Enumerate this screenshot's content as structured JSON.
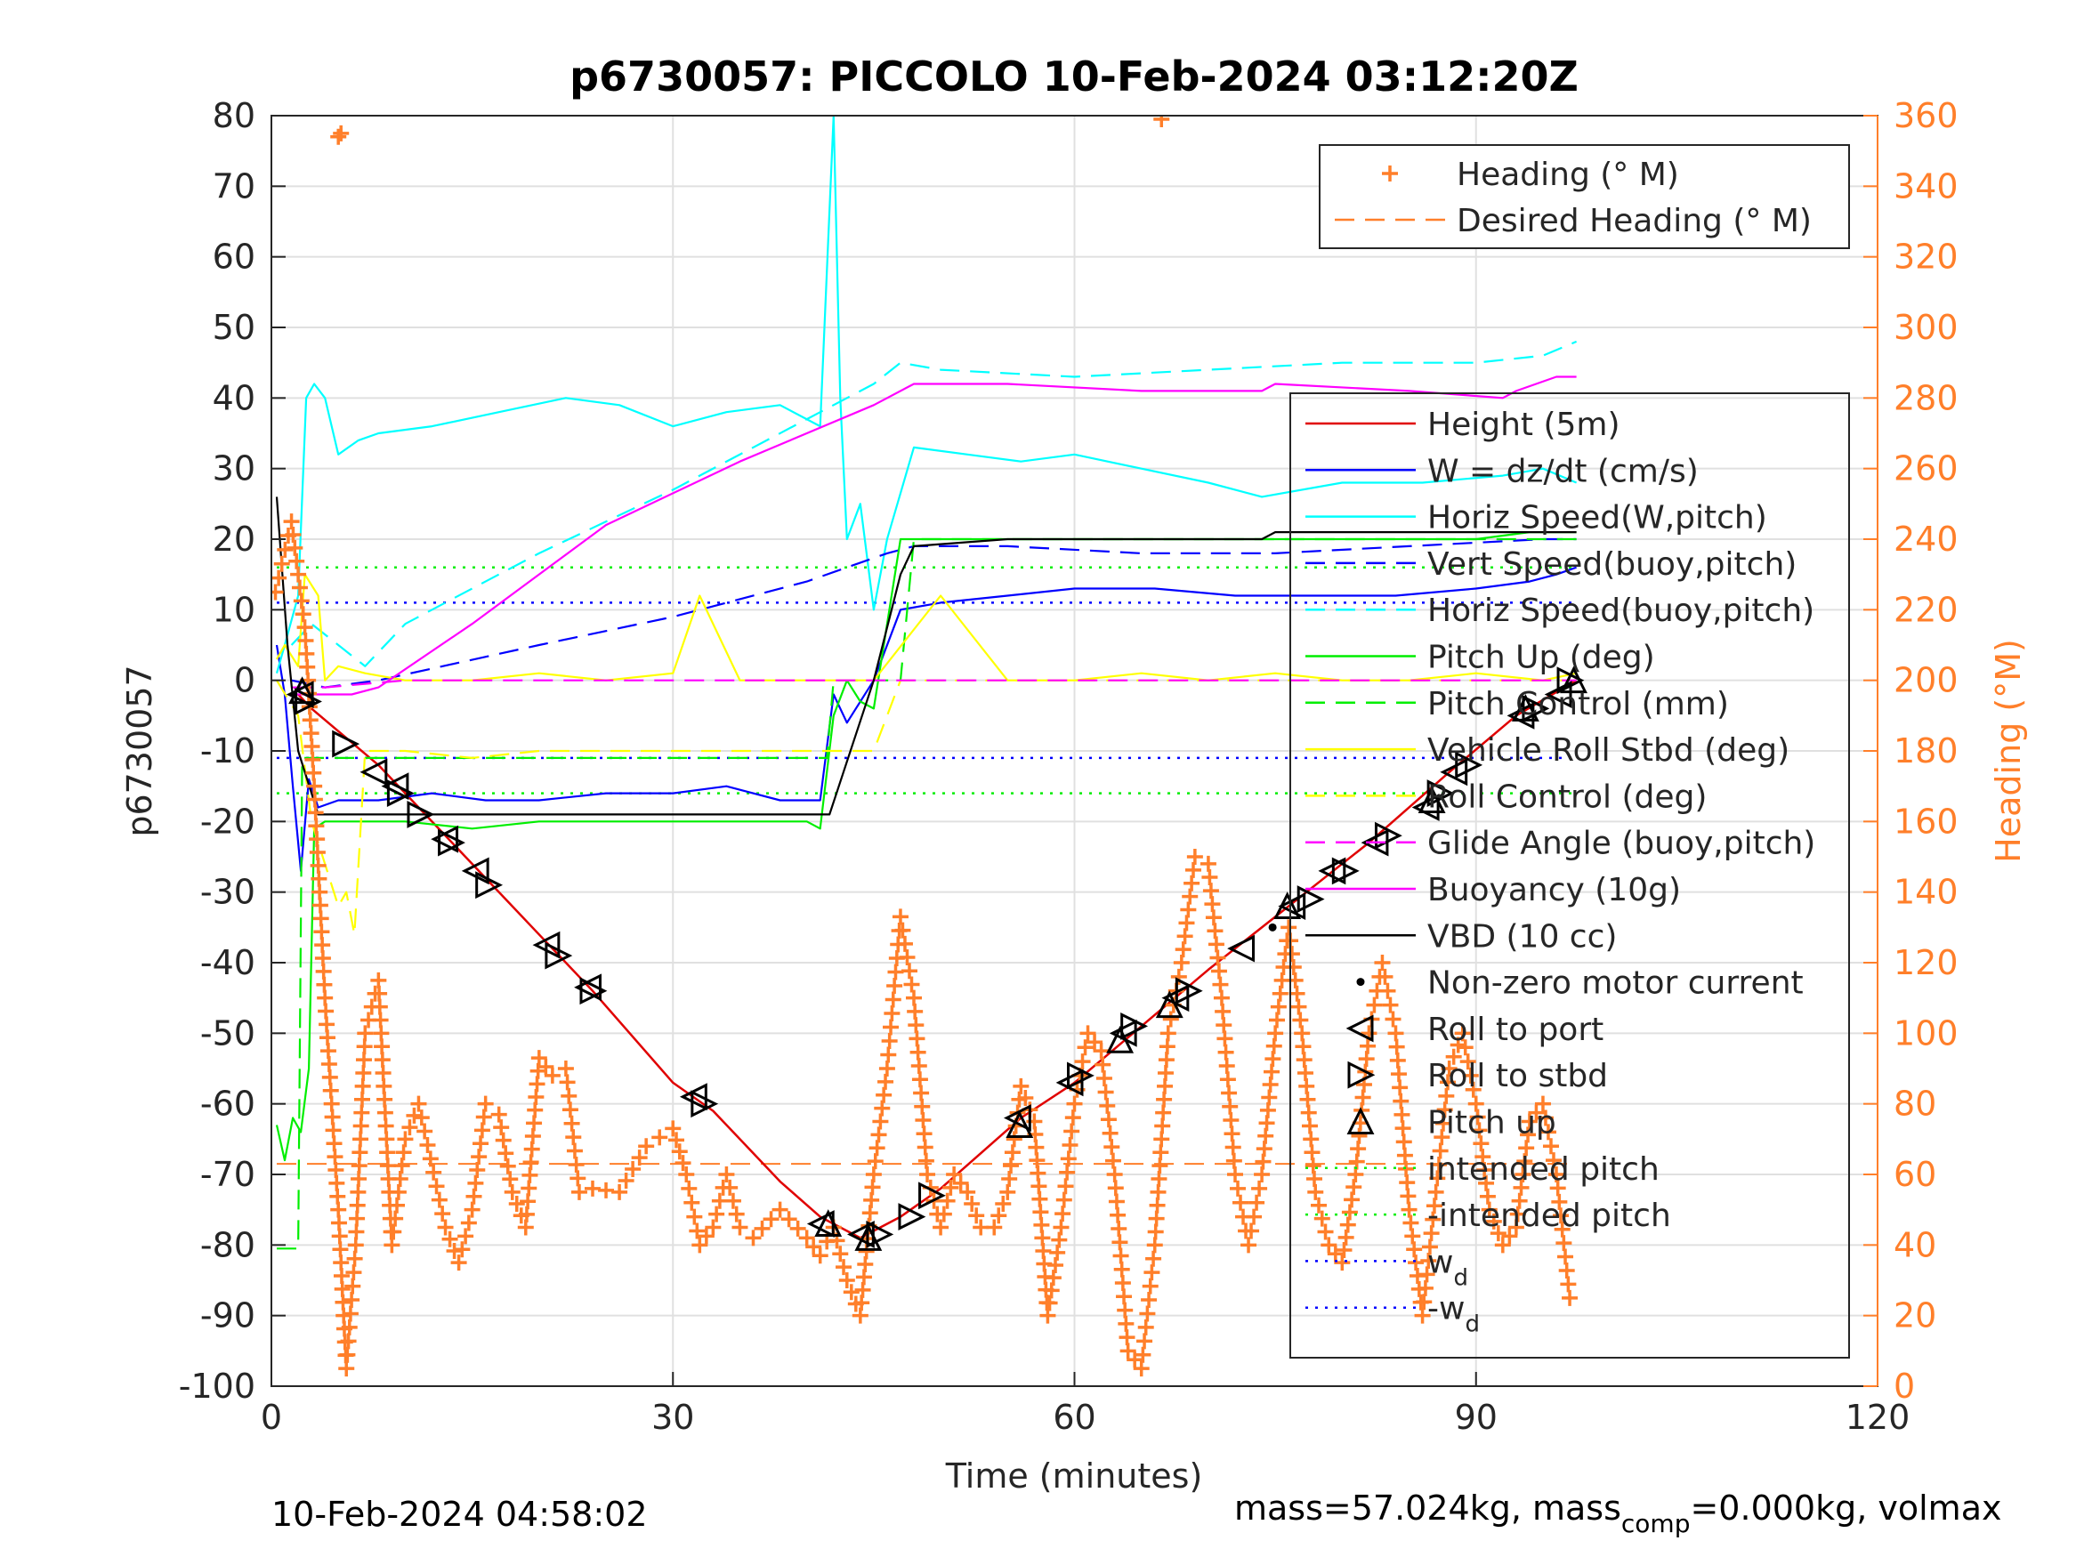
{
  "chart_data": {
    "type": "line",
    "title": "p6730057: PICCOLO 10-Feb-2024 03:12:20Z",
    "xlabel": "Time (minutes)",
    "ylabel_left": "p6730057",
    "ylabel_right": "Heading (°M)",
    "xlim": [
      0,
      120
    ],
    "ylim_left": [
      -100,
      80
    ],
    "ylim_right": [
      0,
      360
    ],
    "x_ticks": [
      "0",
      "30",
      "60",
      "90",
      "120"
    ],
    "y_ticks_left": [
      "80",
      "70",
      "60",
      "50",
      "40",
      "30",
      "20",
      "10",
      "0",
      "-10",
      "-20",
      "-30",
      "-40",
      "-50",
      "-60",
      "-70",
      "-80",
      "-90",
      "-100"
    ],
    "y_ticks_right": [
      "360",
      "340",
      "320",
      "300",
      "280",
      "260",
      "240",
      "220",
      "200",
      "180",
      "160",
      "140",
      "120",
      "100",
      "80",
      "60",
      "40",
      "20",
      "0"
    ],
    "grid": true,
    "footer_left": "10-Feb-2024 04:58:02",
    "footer_right": {
      "prefix": "mass=57.024kg, mass",
      "sub": "comp",
      "suffix": "=0.000kg, volmax"
    },
    "colors": {
      "heading": "#ff7f2a",
      "height": "#e00000",
      "w": "#0000ff",
      "horiz_speed": "#00ffff",
      "pitch": "#00ee00",
      "roll": "#ffff00",
      "glide": "#ff00ff",
      "vbd": "#000000"
    },
    "legend_heading": [
      {
        "label": "Heading (° M)",
        "style": "plus",
        "color": "#ff7f2a"
      },
      {
        "label": "Desired Heading (° M)",
        "style": "dash",
        "color": "#ff7f2a"
      }
    ],
    "legend_main": [
      {
        "label": "Height (5m)",
        "style": "solid",
        "color": "#e00000"
      },
      {
        "label": "W = dz/dt (cm/s)",
        "style": "solid",
        "color": "#0000ff"
      },
      {
        "label": "Horiz Speed(W,pitch)",
        "style": "solid",
        "color": "#00ffff"
      },
      {
        "label": "Vert Speed(buoy,pitch)",
        "style": "dash",
        "color": "#0000ff"
      },
      {
        "label": "Horiz Speed(buoy,pitch)",
        "style": "dash",
        "color": "#00ffff"
      },
      {
        "label": "Pitch Up (deg)",
        "style": "solid",
        "color": "#00ee00"
      },
      {
        "label": "Pitch Control (mm)",
        "style": "dash",
        "color": "#00ee00"
      },
      {
        "label": "Vehicle Roll Stbd (deg)",
        "style": "solid",
        "color": "#ffff00"
      },
      {
        "label": "Roll Control (deg)",
        "style": "dash",
        "color": "#ffff00"
      },
      {
        "label": "Glide Angle (buoy,pitch)",
        "style": "dash",
        "color": "#ff00ff"
      },
      {
        "label": "Buoyancy (10g)",
        "style": "solid",
        "color": "#ff00ff"
      },
      {
        "label": "VBD (10 cc)",
        "style": "solid",
        "color": "#000000"
      },
      {
        "label": "Non-zero motor current",
        "style": "dot",
        "color": "#000000"
      },
      {
        "label": "Roll to port",
        "style": "tri-left",
        "color": "#000000"
      },
      {
        "label": "Roll to stbd",
        "style": "tri-right",
        "color": "#000000"
      },
      {
        "label": "Pitch up",
        "style": "tri-up",
        "color": "#000000"
      },
      {
        "label": "intended pitch",
        "style": "dotted",
        "color": "#00ee00"
      },
      {
        "label": "-intended pitch",
        "style": "dotted",
        "color": "#00ee00"
      },
      {
        "label": "w",
        "sub": "d",
        "style": "dotted",
        "color": "#0000ff"
      },
      {
        "label": "-w",
        "sub": "d",
        "style": "dotted",
        "color": "#0000ff"
      }
    ],
    "series": [
      {
        "name": "Height (5m)",
        "color": "#e00000",
        "dash": "",
        "x": [
          2,
          3,
          8,
          14,
          20,
          24,
          30,
          33,
          38,
          41,
          44,
          47,
          50,
          56,
          60,
          65,
          70,
          76,
          82,
          88,
          93,
          97.5
        ],
        "y": [
          -2,
          -4,
          -12,
          -24,
          -36,
          -44,
          -57,
          -61,
          -71,
          -76,
          -79,
          -76,
          -72,
          -62,
          -57,
          -49,
          -41,
          -32,
          -23,
          -13,
          -5,
          0
        ]
      },
      {
        "name": "W = dz/dt (cm/s)",
        "color": "#0000ff",
        "dash": "",
        "x": [
          0.4,
          1.0,
          1.6,
          2.2,
          2.8,
          3.5,
          5,
          8,
          12,
          16,
          20,
          25,
          30,
          34,
          38,
          41,
          42,
          43,
          45,
          47,
          50,
          55,
          60,
          66,
          72,
          78,
          84,
          90,
          94,
          96,
          97.5
        ],
        "y": [
          5,
          -2,
          -15,
          -27,
          -14,
          -18,
          -17,
          -17,
          -16,
          -17,
          -17,
          -16,
          -16,
          -15,
          -17,
          -17,
          -2,
          -6,
          0,
          10,
          11,
          12,
          13,
          13,
          12,
          12,
          12,
          13,
          14,
          15,
          16
        ]
      },
      {
        "name": "Horiz Speed(W,pitch)",
        "color": "#00ffff",
        "dash": "",
        "x": [
          0.4,
          1.0,
          2.0,
          2.6,
          3.2,
          4,
          5,
          6.5,
          8,
          12,
          17,
          22,
          26,
          30,
          34,
          38,
          41,
          42,
          42.5,
          43,
          44,
          45,
          46,
          48,
          52,
          56,
          60,
          65,
          70,
          74,
          80,
          86,
          92,
          95,
          97.5
        ],
        "y": [
          1,
          5,
          12,
          40,
          42,
          40,
          32,
          34,
          35,
          36,
          38,
          40,
          39,
          36,
          38,
          39,
          36,
          80,
          40,
          20,
          25,
          10,
          20,
          33,
          32,
          31,
          32,
          30,
          28,
          26,
          28,
          28,
          29,
          30,
          28
        ]
      },
      {
        "name": "Vert Speed(buoy,pitch)",
        "color": "#0000ff",
        "dash": "22,12",
        "x": [
          1.5,
          4,
          8,
          20,
          30,
          40,
          43,
          46,
          48,
          55,
          65,
          75,
          85,
          95,
          97.5
        ],
        "y": [
          0,
          -1,
          0,
          5,
          9,
          14,
          16,
          18,
          19,
          19,
          18,
          18,
          19,
          20,
          20
        ]
      },
      {
        "name": "Horiz Speed(buoy,pitch)",
        "color": "#00ffff",
        "dash": "22,12",
        "x": [
          1.5,
          3,
          5,
          7,
          10,
          15,
          20,
          30,
          40,
          45,
          47,
          50,
          60,
          70,
          80,
          90,
          95,
          97.5
        ],
        "y": [
          5,
          8,
          5,
          2,
          8,
          13,
          18,
          27,
          37,
          42,
          45,
          44,
          43,
          44,
          45,
          45,
          46,
          48
        ]
      },
      {
        "name": "Pitch Up (deg)",
        "color": "#00ee00",
        "dash": "",
        "x": [
          0.4,
          1.0,
          1.6,
          2.2,
          2.8,
          3.2,
          4,
          6,
          10,
          15,
          20,
          25,
          30,
          35,
          40,
          41,
          42,
          43,
          44,
          45,
          47,
          50,
          55,
          60,
          66,
          72,
          78,
          84,
          90,
          94,
          97.5
        ],
        "y": [
          -63,
          -68,
          -62,
          -64,
          -55,
          -21,
          -20,
          -20,
          -20,
          -21,
          -20,
          -20,
          -20,
          -20,
          -20,
          -21,
          -5,
          0,
          -3,
          -4,
          20,
          20,
          20,
          20,
          20,
          20,
          20,
          20,
          20,
          21,
          21
        ]
      },
      {
        "name": "Pitch Control (mm)",
        "color": "#00ee00",
        "dash": "22,12",
        "x": [
          0.4,
          2,
          2.3,
          3,
          6,
          10,
          20,
          30,
          40,
          41.5,
          42,
          47,
          48,
          60,
          70,
          80,
          90,
          95,
          97.5
        ],
        "y": [
          -80.5,
          -80.5,
          -11,
          -11,
          -11,
          -11,
          -11,
          -11,
          -11,
          -11,
          0,
          0,
          20,
          20,
          20,
          20,
          20,
          20,
          20
        ]
      },
      {
        "name": "Vehicle Roll Stbd (deg)",
        "color": "#ffff00",
        "dash": "",
        "x": [
          0.4,
          1,
          2,
          2.5,
          3.5,
          4,
          5,
          7,
          10,
          15,
          20,
          25,
          30,
          32,
          35,
          40,
          45,
          50,
          55,
          60,
          65,
          70,
          75,
          80,
          85,
          90,
          95,
          97.5
        ],
        "y": [
          3,
          5,
          2,
          15,
          12,
          0,
          2,
          1,
          0,
          0,
          1,
          0,
          1,
          12,
          0,
          0,
          0,
          12,
          0,
          0,
          1,
          0,
          1,
          0,
          0,
          1,
          0,
          1
        ]
      },
      {
        "name": "Roll Control (deg)",
        "color": "#ffff00",
        "dash": "22,12",
        "x": [
          0.4,
          2,
          3,
          5,
          5.6,
          6.2,
          7,
          10,
          15,
          20,
          30,
          40,
          45,
          47,
          50,
          60,
          70,
          80,
          90,
          95,
          97.5
        ],
        "y": [
          0,
          -5,
          -20,
          -32,
          -30,
          -36,
          -10,
          -10,
          -11,
          -10,
          -10,
          -10,
          -10,
          0,
          0,
          0,
          0,
          0,
          0,
          0,
          0
        ]
      },
      {
        "name": "Glide Angle (buoy,pitch)",
        "color": "#ff00ff",
        "dash": "22,12",
        "x": [
          1.5,
          4,
          10,
          30,
          50,
          70,
          90,
          97.5
        ],
        "y": [
          -1,
          -1,
          0,
          0,
          0,
          0,
          0,
          0
        ]
      },
      {
        "name": "Buoyancy (10g)",
        "color": "#ff00ff",
        "dash": "",
        "x": [
          1.5,
          3,
          6,
          8,
          15,
          25,
          35,
          45,
          48,
          55,
          65,
          74,
          75,
          85,
          92,
          93,
          96,
          97.5
        ],
        "y": [
          -2,
          -2,
          -2,
          -1,
          8,
          22,
          31,
          39,
          42,
          42,
          41,
          41,
          42,
          41,
          40,
          41,
          43,
          43
        ]
      },
      {
        "name": "VBD (10 cc)",
        "color": "#000000",
        "dash": "",
        "x": [
          0.4,
          1.2,
          2.0,
          3.0,
          3.5,
          5,
          10,
          20,
          30,
          40,
          41.7,
          45,
          47,
          48,
          55,
          65,
          74,
          75,
          85,
          92,
          94,
          96,
          97.5
        ],
        "y": [
          26,
          5,
          -10,
          -16,
          -19,
          -19,
          -19,
          -19,
          -19,
          -19,
          -19,
          0,
          15,
          19,
          20,
          20,
          20,
          21,
          21,
          21,
          21,
          21,
          21
        ]
      }
    ],
    "reference_lines": [
      {
        "name": "intended pitch",
        "y": 16,
        "x": [
          0.4,
          97.5
        ],
        "color": "#00ee00"
      },
      {
        "name": "-intended pitch",
        "y": -16,
        "x": [
          0.4,
          97.5
        ],
        "color": "#00ee00"
      },
      {
        "name": "w_d",
        "y": 11,
        "x": [
          0.4,
          97.5
        ],
        "color": "#0000ff"
      },
      {
        "name": "-w_d",
        "y": -11,
        "x": [
          0.4,
          97.5
        ],
        "color": "#0000ff"
      }
    ],
    "desired_heading": {
      "x": [
        0.4,
        97.5
      ],
      "y": [
        63,
        63
      ]
    },
    "heading_path": {
      "x": [
        0.3,
        1.5,
        2.5,
        3.2,
        4,
        5,
        5.6,
        6.3,
        7,
        8,
        9,
        10,
        11,
        13,
        14,
        15,
        16,
        17,
        18,
        19,
        20,
        21,
        22,
        23,
        24,
        26,
        28,
        30,
        31,
        32,
        33,
        34,
        35,
        36,
        38,
        40,
        41,
        42,
        43,
        44,
        45,
        46,
        47,
        48,
        49,
        50,
        51,
        52,
        53,
        54,
        55,
        56,
        57,
        58,
        59,
        60,
        61,
        62,
        63,
        64,
        65,
        66,
        67,
        68,
        69,
        70,
        71,
        72,
        73,
        74,
        75,
        76,
        77,
        78,
        79,
        80,
        81,
        82,
        83,
        84,
        85,
        86,
        87,
        88,
        89,
        90,
        91,
        92,
        93,
        94,
        95,
        96,
        97
      ],
      "y": [
        225,
        245,
        215,
        170,
        110,
        50,
        5,
        40,
        100,
        115,
        40,
        70,
        80,
        45,
        35,
        50,
        80,
        77,
        55,
        45,
        93,
        88,
        90,
        55,
        56,
        55,
        68,
        73,
        60,
        40,
        45,
        60,
        45,
        42,
        50,
        42,
        37,
        45,
        30,
        20,
        60,
        90,
        133,
        110,
        60,
        45,
        60,
        55,
        45,
        45,
        55,
        85,
        75,
        20,
        45,
        80,
        100,
        95,
        60,
        10,
        5,
        40,
        100,
        120,
        150,
        148,
        110,
        60,
        40,
        60,
        100,
        130,
        100,
        55,
        40,
        35,
        60,
        100,
        120,
        100,
        50,
        20,
        55,
        90,
        100,
        80,
        50,
        40,
        45,
        75,
        80,
        60,
        25
      ]
    },
    "heading_outliers": [
      {
        "x": 5.0,
        "y": 354
      },
      {
        "x": 5.2,
        "y": 355
      },
      {
        "x": 66.5,
        "y": 359
      }
    ],
    "roll_port_markers": [
      [
        2.2,
        -2
      ],
      [
        7.7,
        -13
      ],
      [
        9.3,
        -15
      ],
      [
        13,
        -22.5
      ],
      [
        15.3,
        -27
      ],
      [
        20.6,
        -37.5
      ],
      [
        23.7,
        -43.5
      ],
      [
        31.6,
        -59
      ],
      [
        41.1,
        -77
      ],
      [
        44.1,
        -78.5
      ],
      [
        55.8,
        -62
      ],
      [
        59.7,
        -57
      ],
      [
        63.7,
        -50
      ],
      [
        67.6,
        -45
      ],
      [
        72.5,
        -38
      ],
      [
        76.3,
        -32
      ],
      [
        79.3,
        -27
      ],
      [
        82.5,
        -23
      ],
      [
        86.3,
        -18
      ],
      [
        88.4,
        -13
      ],
      [
        93.4,
        -5
      ],
      [
        96.2,
        -2
      ]
    ],
    "roll_stbd_markers": [
      [
        2.7,
        -3
      ],
      [
        5.5,
        -9
      ],
      [
        9.6,
        -16
      ],
      [
        11.1,
        -19
      ],
      [
        13.4,
        -23
      ],
      [
        16.2,
        -29
      ],
      [
        21.4,
        -39
      ],
      [
        24.0,
        -44
      ],
      [
        32.3,
        -60
      ],
      [
        45.4,
        -78.5
      ],
      [
        47.8,
        -76
      ],
      [
        49.3,
        -73
      ],
      [
        60.4,
        -56
      ],
      [
        64.4,
        -49
      ],
      [
        68.5,
        -44
      ],
      [
        77.6,
        -31
      ],
      [
        80.2,
        -27
      ],
      [
        83.4,
        -22
      ],
      [
        87.3,
        -16
      ],
      [
        89.4,
        -12
      ],
      [
        94.4,
        -4
      ],
      [
        97.0,
        0
      ]
    ],
    "pitch_up_markers": [
      [
        2.3,
        -1.5
      ],
      [
        41.6,
        -77
      ],
      [
        44.6,
        -79
      ],
      [
        55.9,
        -63
      ],
      [
        63.4,
        -51
      ],
      [
        67.1,
        -46
      ],
      [
        75.9,
        -32
      ],
      [
        86.7,
        -17
      ],
      [
        93.7,
        -4
      ],
      [
        97.3,
        0
      ]
    ],
    "motor_dots": [
      [
        74.8,
        -35
      ]
    ]
  }
}
